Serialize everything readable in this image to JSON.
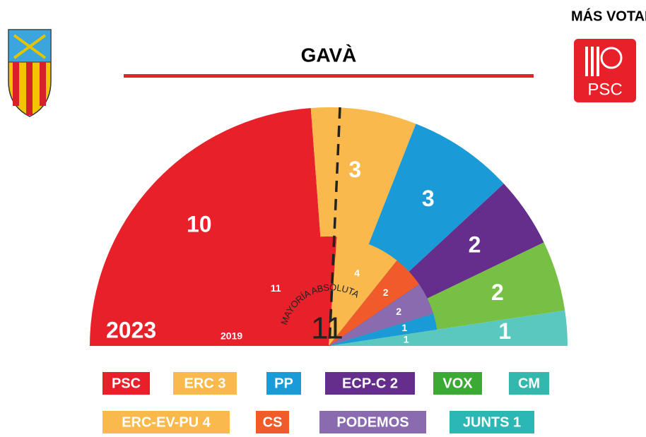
{
  "chart_data": {
    "type": "semi-donut",
    "title": "GAVÀ",
    "top_label": "MÁS VOTADO",
    "winner_logo": "PSC",
    "majority_label": "MAYORÍA ABSOLUTA",
    "majority": 11,
    "rings": [
      {
        "name": "2023",
        "values": [
          10,
          3,
          3,
          2,
          2,
          1
        ],
        "colors": [
          "#e8202a",
          "#f9b94c",
          "#1a9ad6",
          "#652d8c",
          "#77c043",
          "#5bc8c0"
        ]
      },
      {
        "name": "2019",
        "values": [
          11,
          4,
          2,
          2,
          1,
          1
        ],
        "colors": [
          "#e8202a",
          "#f9b94c",
          "#f15a29",
          "#8a6bb0",
          "#1a9ad6",
          "#5bc8c0"
        ]
      }
    ],
    "legend": [
      {
        "label": "PSC",
        "color": "#e8202a"
      },
      {
        "label": "ERC 3",
        "color": "#f9b94c"
      },
      {
        "label": "PP",
        "color": "#1a9ad6"
      },
      {
        "label": "ECP-C 2",
        "color": "#652d8c"
      },
      {
        "label": "VOX",
        "color": "#3aaa35"
      },
      {
        "label": "CM",
        "color": "#33b8ad"
      },
      {
        "label": "ERC-EV-PU 4",
        "color": "#f9b94c"
      },
      {
        "label": "CS",
        "color": "#f15a29"
      },
      {
        "label": "PODEMOS",
        "color": "#8a6bb0"
      },
      {
        "label": "JUNTS 1",
        "color": "#2bb7b3"
      }
    ]
  }
}
